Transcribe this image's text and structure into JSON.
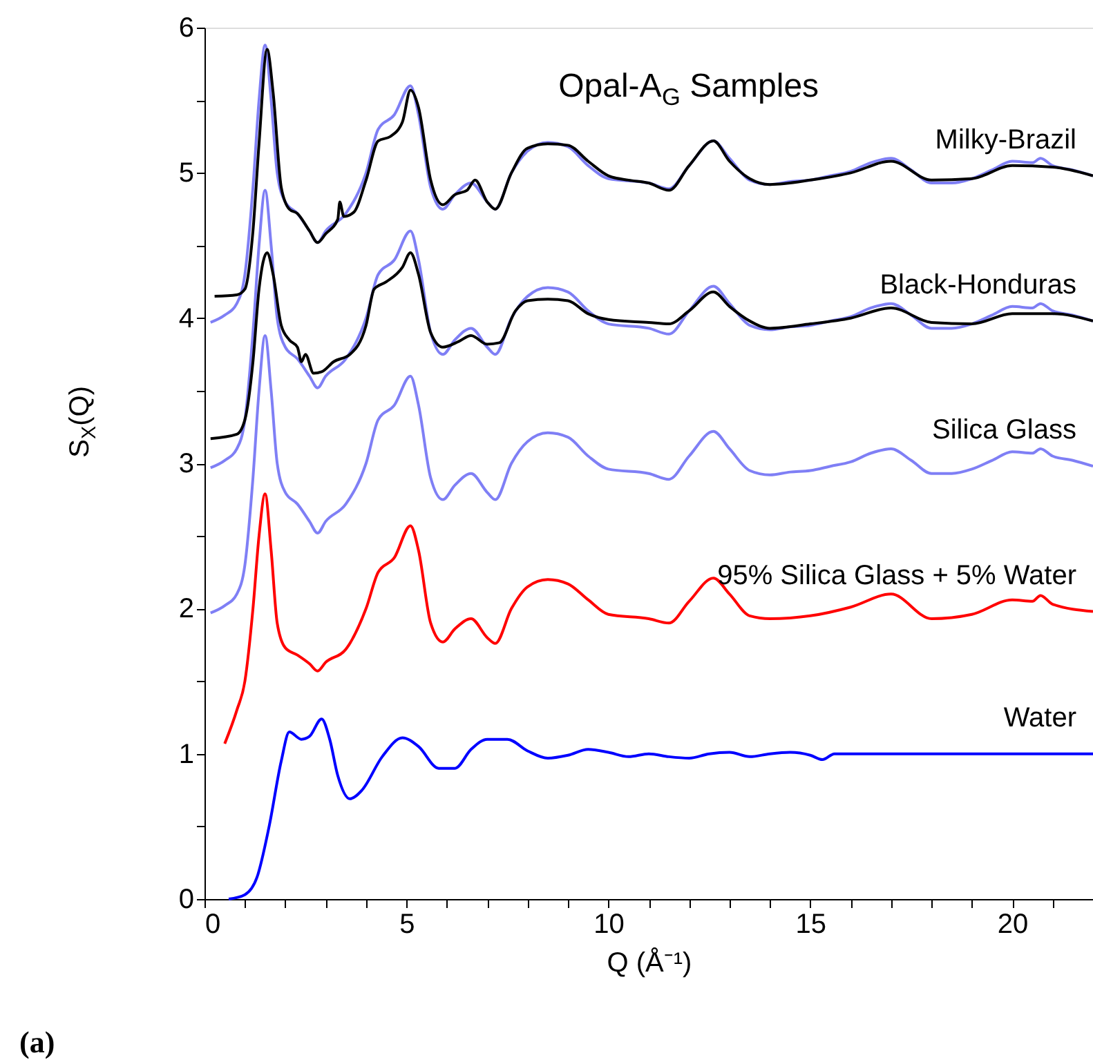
{
  "chart_data": {
    "type": "line",
    "title": "Opal-A$_{G}$ Samples",
    "xlabel": "Q (Å⁻¹)",
    "ylabel": "S$_{X}$(Q)",
    "annotations": [
      "(a)"
    ],
    "xlim": [
      0,
      22
    ],
    "ylim": [
      0,
      6
    ],
    "xticks": [
      0,
      {
        "value": 1,
        "label": null
      },
      {
        "value": 2,
        "label": null
      },
      {
        "value": 3,
        "label": null
      },
      {
        "value": 4,
        "label": null
      },
      5,
      {
        "value": 6,
        "label": null
      },
      {
        "value": 7,
        "label": null
      },
      {
        "value": 8,
        "label": null
      },
      {
        "value": 9,
        "label": null
      },
      10,
      {
        "value": 11,
        "label": null
      },
      {
        "value": 12,
        "label": null
      },
      {
        "value": 13,
        "label": null
      },
      {
        "value": 14,
        "label": null
      },
      15,
      {
        "value": 16,
        "label": null
      },
      {
        "value": 17,
        "label": null
      },
      {
        "value": 18,
        "label": null
      },
      {
        "value": 19,
        "label": null
      },
      20,
      {
        "value": 21,
        "label": null
      },
      {
        "value": 22,
        "label": null
      }
    ],
    "yticks": [
      0,
      {
        "value": 0.5,
        "label": null
      },
      1,
      {
        "value": 1.5,
        "label": null
      },
      2,
      {
        "value": 2.5,
        "label": null
      },
      3,
      {
        "value": 3.5,
        "label": null
      },
      4,
      {
        "value": 4.5,
        "label": null
      },
      5,
      {
        "value": 5.5,
        "label": null
      },
      6
    ],
    "grid": false,
    "legend": false,
    "marker": "none",
    "line_style": "solid",
    "series": [
      {
        "name": "Water",
        "color": "#0000ff",
        "x": [
          0.6,
          1.0,
          1.3,
          1.6,
          1.9,
          2.1,
          2.4,
          2.6,
          2.9,
          3.1,
          3.3,
          3.6,
          3.9,
          4.4,
          4.9,
          5.3,
          5.8,
          6.2,
          6.6,
          7.0,
          7.5,
          8.0,
          8.5,
          9.0,
          9.5,
          10,
          10.5,
          11,
          11.5,
          12,
          12.5,
          13,
          13.5,
          14,
          14.5,
          15,
          15.3,
          15.6,
          16,
          22
        ],
        "values": [
          0.0,
          0.03,
          0.15,
          0.5,
          0.95,
          1.15,
          1.1,
          1.12,
          1.24,
          1.1,
          0.85,
          0.69,
          0.75,
          0.98,
          1.11,
          1.05,
          0.9,
          0.9,
          1.03,
          1.1,
          1.1,
          1.02,
          0.97,
          0.99,
          1.03,
          1.01,
          0.98,
          1.0,
          0.98,
          0.97,
          1.0,
          1.01,
          0.98,
          1.0,
          1.01,
          0.99,
          0.96,
          1.0,
          1.0,
          1.0
        ]
      },
      {
        "name": "95% Silica Glass + 5% Water",
        "color": "#ff0000",
        "x": [
          0.5,
          0.8,
          1.0,
          1.2,
          1.35,
          1.5,
          1.65,
          1.8,
          2.0,
          2.3,
          2.6,
          2.8,
          3.0,
          3.5,
          4.0,
          4.3,
          4.7,
          5.1,
          5.3,
          5.6,
          5.9,
          6.2,
          6.6,
          7.0,
          7.2,
          7.6,
          8,
          8.5,
          9,
          9.5,
          10,
          11,
          11.5,
          12,
          12.6,
          13,
          13.5,
          14,
          15,
          16,
          17,
          18,
          19,
          20,
          20.5,
          20.7,
          21,
          22
        ],
        "values": [
          1.07,
          1.3,
          1.5,
          2.0,
          2.5,
          2.79,
          2.4,
          1.9,
          1.73,
          1.68,
          1.62,
          1.57,
          1.63,
          1.72,
          2.0,
          2.25,
          2.35,
          2.57,
          2.4,
          1.9,
          1.77,
          1.86,
          1.93,
          1.8,
          1.76,
          2.0,
          2.15,
          2.2,
          2.17,
          2.06,
          1.96,
          1.93,
          1.9,
          2.05,
          2.21,
          2.1,
          1.95,
          1.93,
          1.95,
          2.01,
          2.1,
          1.93,
          1.96,
          2.06,
          2.05,
          2.09,
          2.03,
          1.98
        ]
      },
      {
        "name": "Silica Glass",
        "color": "#7f7ff5",
        "x": [
          0.15,
          0.5,
          0.8,
          1.0,
          1.2,
          1.35,
          1.5,
          1.65,
          1.8,
          2.0,
          2.3,
          2.6,
          2.8,
          3.0,
          3.5,
          4.0,
          4.3,
          4.7,
          5.1,
          5.3,
          5.6,
          5.9,
          6.2,
          6.6,
          7.0,
          7.2,
          7.6,
          8.0,
          8.5,
          9.0,
          9.5,
          10,
          11,
          11.5,
          12,
          12.6,
          13,
          13.5,
          14,
          14.5,
          15,
          15.5,
          16,
          16.5,
          17,
          17.5,
          18,
          18.5,
          19,
          19.5,
          20,
          20.5,
          20.7,
          21,
          21.5,
          22
        ],
        "values": [
          1.97,
          2.02,
          2.1,
          2.3,
          2.9,
          3.5,
          3.88,
          3.5,
          3.0,
          2.8,
          2.72,
          2.6,
          2.52,
          2.6,
          2.72,
          3.0,
          3.3,
          3.4,
          3.6,
          3.4,
          2.9,
          2.75,
          2.85,
          2.93,
          2.8,
          2.75,
          3.0,
          3.15,
          3.21,
          3.18,
          3.05,
          2.96,
          2.93,
          2.89,
          3.05,
          3.22,
          3.1,
          2.95,
          2.92,
          2.94,
          2.95,
          2.98,
          3.01,
          3.07,
          3.1,
          3.02,
          2.93,
          2.93,
          2.96,
          3.02,
          3.08,
          3.07,
          3.1,
          3.05,
          3.02,
          2.98
        ]
      },
      {
        "color": "#7f7ff5",
        "x": [
          0.15,
          0.5,
          0.8,
          1.0,
          1.2,
          1.35,
          1.5,
          1.65,
          1.8,
          2.0,
          2.3,
          2.6,
          2.8,
          3.0,
          3.5,
          4.0,
          4.3,
          4.7,
          5.1,
          5.3,
          5.6,
          5.9,
          6.2,
          6.6,
          7.0,
          7.2,
          7.6,
          8.0,
          8.5,
          9.0,
          9.5,
          10,
          11,
          11.5,
          12,
          12.6,
          13,
          13.5,
          14,
          14.5,
          15,
          15.5,
          16,
          16.5,
          17,
          17.5,
          18,
          18.5,
          19,
          19.5,
          20,
          20.5,
          20.7,
          21,
          21.5,
          22
        ],
        "values": [
          2.97,
          3.02,
          3.1,
          3.3,
          3.9,
          4.5,
          4.88,
          4.5,
          4.0,
          3.8,
          3.72,
          3.6,
          3.52,
          3.6,
          3.72,
          4.0,
          4.3,
          4.4,
          4.6,
          4.4,
          3.9,
          3.75,
          3.85,
          3.93,
          3.8,
          3.75,
          4.0,
          4.15,
          4.21,
          4.18,
          4.05,
          3.96,
          3.93,
          3.89,
          4.05,
          4.22,
          4.1,
          3.95,
          3.92,
          3.94,
          3.95,
          3.98,
          4.01,
          4.07,
          4.1,
          4.02,
          3.93,
          3.93,
          3.96,
          4.02,
          4.08,
          4.07,
          4.1,
          4.05,
          4.02,
          3.98
        ]
      },
      {
        "name": "Black-Honduras",
        "color": "#000000",
        "x": [
          0.15,
          0.8,
          1.0,
          1.2,
          1.35,
          1.55,
          1.7,
          1.9,
          2.1,
          2.3,
          2.4,
          2.5,
          2.7,
          2.9,
          3.2,
          3.6,
          4.0,
          4.2,
          4.5,
          4.9,
          5.1,
          5.3,
          5.6,
          5.9,
          6.3,
          6.6,
          7.0,
          7.3,
          7.7,
          8.0,
          8.5,
          9,
          9.5,
          10,
          11,
          11.5,
          12,
          12.6,
          13,
          13.5,
          14,
          15,
          16,
          17,
          18,
          19,
          20,
          21,
          22
        ],
        "values": [
          3.17,
          3.2,
          3.3,
          3.7,
          4.2,
          4.45,
          4.3,
          3.95,
          3.85,
          3.8,
          3.7,
          3.75,
          3.62,
          3.63,
          3.7,
          3.75,
          3.95,
          4.2,
          4.25,
          4.35,
          4.45,
          4.3,
          3.9,
          3.8,
          3.84,
          3.88,
          3.82,
          3.83,
          4.05,
          4.12,
          4.13,
          4.12,
          4.03,
          3.99,
          3.97,
          3.96,
          4.05,
          4.18,
          4.08,
          3.98,
          3.93,
          3.96,
          4.0,
          4.07,
          3.97,
          3.96,
          4.03,
          4.03,
          3.98
        ]
      },
      {
        "color": "#7f7ff5",
        "x": [
          0.15,
          0.5,
          0.8,
          1.0,
          1.2,
          1.35,
          1.5,
          1.65,
          1.8,
          2.0,
          2.3,
          2.6,
          2.8,
          3.0,
          3.5,
          4.0,
          4.3,
          4.7,
          5.1,
          5.3,
          5.6,
          5.9,
          6.2,
          6.6,
          7.0,
          7.2,
          7.6,
          8.0,
          8.5,
          9.0,
          9.5,
          10,
          11,
          11.5,
          12,
          12.6,
          13,
          13.5,
          14,
          14.5,
          15,
          15.5,
          16,
          16.5,
          17,
          17.5,
          18,
          18.5,
          19,
          19.5,
          20,
          20.5,
          20.7,
          21,
          21.5,
          22
        ],
        "values": [
          3.97,
          4.02,
          4.1,
          4.3,
          4.9,
          5.5,
          5.88,
          5.5,
          5.0,
          4.8,
          4.72,
          4.6,
          4.52,
          4.6,
          4.72,
          5.0,
          5.3,
          5.4,
          5.6,
          5.4,
          4.9,
          4.75,
          4.85,
          4.93,
          4.8,
          4.75,
          5.0,
          5.15,
          5.21,
          5.18,
          5.05,
          4.96,
          4.93,
          4.89,
          5.05,
          5.22,
          5.1,
          4.95,
          4.92,
          4.94,
          4.95,
          4.98,
          5.01,
          5.07,
          5.1,
          5.02,
          4.93,
          4.93,
          4.96,
          5.02,
          5.08,
          5.07,
          5.1,
          5.05,
          5.02,
          4.98
        ]
      },
      {
        "name": "Milky-Brazil",
        "color": "#000000",
        "x": [
          0.25,
          0.8,
          1.0,
          1.2,
          1.35,
          1.55,
          1.7,
          1.9,
          2.1,
          2.3,
          2.6,
          2.8,
          3.0,
          3.3,
          3.35,
          3.45,
          3.7,
          4.0,
          4.3,
          4.6,
          4.9,
          5.1,
          5.3,
          5.6,
          5.9,
          6.2,
          6.5,
          6.7,
          7.0,
          7.2,
          7.6,
          8,
          8.5,
          9,
          9.5,
          10,
          10.5,
          11,
          11.5,
          12,
          12.6,
          13,
          13.5,
          14,
          15,
          16,
          17,
          18,
          19,
          20,
          21,
          22
        ],
        "values": [
          4.15,
          4.16,
          4.2,
          4.6,
          5.2,
          5.85,
          5.55,
          4.9,
          4.75,
          4.72,
          4.6,
          4.52,
          4.58,
          4.68,
          4.8,
          4.7,
          4.73,
          4.95,
          5.22,
          5.25,
          5.35,
          5.57,
          5.45,
          4.95,
          4.78,
          4.85,
          4.88,
          4.95,
          4.8,
          4.75,
          5.0,
          5.17,
          5.2,
          5.19,
          5.08,
          4.98,
          4.95,
          4.93,
          4.88,
          5.05,
          5.22,
          5.08,
          4.96,
          4.92,
          4.95,
          5.0,
          5.08,
          4.95,
          4.96,
          5.05,
          5.04,
          4.98
        ]
      }
    ]
  }
}
